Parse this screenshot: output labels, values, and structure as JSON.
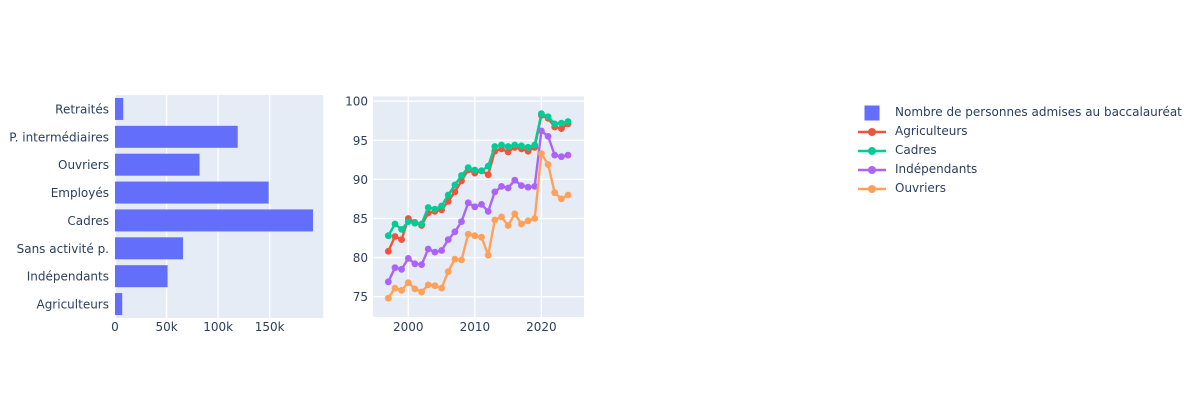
{
  "figure": {
    "text_color": "#2a3f5f",
    "plot_background": "#e5ecf6",
    "grid_color": "#ffffff",
    "paper_background": "#ffffff"
  },
  "chart_data": [
    {
      "type": "bar",
      "orientation": "horizontal",
      "name": "Nombre de personnes admises au baccalauréat",
      "color": "#636efa",
      "categories": [
        "Retraités",
        "P. intermédiaires",
        "Ouvriers",
        "Employés",
        "Cadres",
        "Sans activité p.",
        "Indépendants",
        "Agriculteurs"
      ],
      "values": [
        8000,
        119000,
        82000,
        149000,
        192000,
        66000,
        51000,
        7000
      ],
      "xlim": [
        0,
        202000
      ],
      "x_tick_values": [
        0,
        50000,
        100000,
        150000
      ],
      "x_tick_labels": [
        "0",
        "50k",
        "100k",
        "150k"
      ],
      "grid": "vertical-white"
    },
    {
      "type": "line",
      "title": "",
      "x": [
        1997,
        1998,
        1999,
        2000,
        2001,
        2002,
        2003,
        2004,
        2005,
        2006,
        2007,
        2008,
        2009,
        2010,
        2011,
        2012,
        2013,
        2014,
        2015,
        2016,
        2017,
        2018,
        2019,
        2020,
        2021,
        2022,
        2023,
        2024
      ],
      "series": [
        {
          "name": "Agriculteurs",
          "color": "#ef553b",
          "values": [
            80.8,
            82.7,
            82.3,
            85.0,
            84.5,
            84.1,
            85.7,
            85.9,
            86.1,
            87.2,
            88.4,
            89.8,
            91.2,
            90.8,
            91.1,
            90.6,
            93.6,
            93.9,
            93.5,
            94.1,
            93.9,
            93.6,
            94.1,
            98.2,
            97.8,
            96.7,
            96.5,
            97.1
          ]
        },
        {
          "name": "Cadres",
          "color": "#00cc96",
          "values": [
            82.8,
            84.3,
            83.6,
            84.6,
            84.4,
            84.3,
            86.4,
            86.2,
            86.6,
            88.0,
            89.3,
            90.5,
            91.5,
            91.2,
            91.1,
            91.7,
            94.2,
            94.4,
            94.2,
            94.4,
            94.3,
            94.1,
            94.4,
            98.4,
            98.0,
            97.1,
            97.2,
            97.4
          ]
        },
        {
          "name": "Indépendants",
          "color": "#ab63fa",
          "values": [
            76.9,
            78.7,
            78.5,
            79.9,
            79.2,
            79.1,
            81.1,
            80.7,
            80.9,
            82.3,
            83.3,
            84.6,
            87.0,
            86.5,
            86.8,
            85.9,
            88.4,
            89.1,
            88.9,
            89.9,
            89.2,
            89.0,
            89.1,
            96.2,
            95.5,
            93.1,
            92.9,
            93.1
          ]
        },
        {
          "name": "Ouvriers",
          "color": "#ffa15a",
          "values": [
            74.8,
            76.1,
            75.8,
            76.8,
            76.0,
            75.6,
            76.5,
            76.4,
            76.1,
            78.2,
            79.8,
            79.7,
            83.0,
            82.8,
            82.6,
            80.3,
            84.8,
            85.2,
            84.1,
            85.6,
            84.3,
            84.7,
            85.0,
            93.3,
            91.9,
            88.3,
            87.5,
            88.0
          ]
        }
      ],
      "ylim": [
        72.4,
        100.6
      ],
      "xlim": [
        1994.7,
        2026.4
      ],
      "y_tick_values": [
        75,
        80,
        85,
        90,
        95,
        100
      ],
      "y_tick_labels": [
        "75",
        "80",
        "85",
        "90",
        "95",
        "100"
      ],
      "x_tick_values": [
        2000,
        2010,
        2020
      ],
      "x_tick_labels": [
        "2000",
        "2010",
        "2020"
      ],
      "grid": "both-white",
      "legend_position": "right"
    }
  ],
  "legend": {
    "items": [
      {
        "label": "Nombre de personnes admises au baccalauréat",
        "marker": "square",
        "color": "#636efa"
      },
      {
        "label": "Agriculteurs",
        "marker": "line-dot",
        "color": "#ef553b"
      },
      {
        "label": "Cadres",
        "marker": "line-dot",
        "color": "#00cc96"
      },
      {
        "label": "Indépendants",
        "marker": "line-dot",
        "color": "#ab63fa"
      },
      {
        "label": "Ouvriers",
        "marker": "line-dot",
        "color": "#ffa15a"
      }
    ]
  }
}
